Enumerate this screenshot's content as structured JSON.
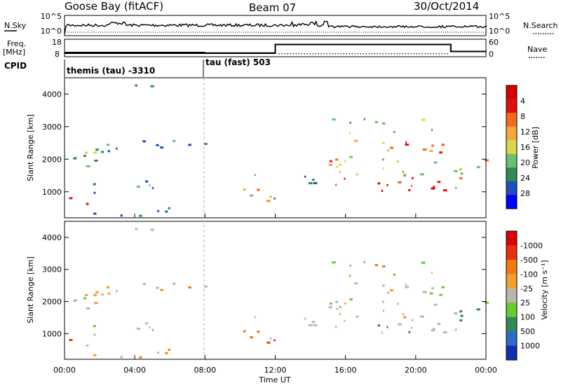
{
  "header": {
    "station": "Goose Bay (fitACF)",
    "beam": "Beam 07",
    "date": "30/Oct/2014"
  },
  "side_labels": {
    "nsky": "N.Sky",
    "nsearch": "N.Search",
    "freq_top": "Freq.",
    "freq_unit": "[MHz]",
    "nave": "Nave",
    "cpid": "CPID"
  },
  "strip_ticks": {
    "noise_left_top": "10^5",
    "noise_left_bottom": "10^0",
    "noise_right_top": "10^5",
    "noise_right_bottom": "10^0",
    "freq_left_top": "18",
    "freq_left_bottom": "8",
    "nave_right_top": "60",
    "nave_right_bottom": "0"
  },
  "cpid": {
    "segment1": "themis (tau) -3310",
    "segment2": "tau (fast) 503"
  },
  "axes": {
    "xlabel": "Time UT",
    "ylabel": "Slant Range [km]",
    "x_ticks": [
      "00:00",
      "04:00",
      "08:00",
      "12:00",
      "16:00",
      "20:00",
      "00:00"
    ],
    "y_ticks": [
      "1000",
      "2000",
      "3000",
      "4000"
    ]
  },
  "colorbars": {
    "power": {
      "label": "Power [dB]",
      "ticks": [
        "4",
        "8",
        "12",
        "16",
        "20",
        "24",
        "28"
      ],
      "colors": [
        "#0000ff",
        "#1f4fbf",
        "#2e8b57",
        "#6cc06c",
        "#d8d84a",
        "#f2a83a",
        "#f26a1a",
        "#e01010",
        "#d80000"
      ]
    },
    "velocity": {
      "label": "Velocity [m s⁻¹]",
      "ticks": [
        "1000",
        "500",
        "100",
        "25",
        "-25",
        "-100",
        "-500",
        "-1000"
      ],
      "colors": [
        "#1030b0",
        "#2e6bc8",
        "#2e8b57",
        "#66cc33",
        "#b8b8b0",
        "#f0a030",
        "#f07a10",
        "#e83010",
        "#e00000"
      ]
    }
  },
  "chart_data": [
    {
      "type": "line",
      "title": "N.Sky / N.Search noise",
      "x_range_hours": [
        0,
        24
      ],
      "y_scale": "log",
      "ylim": [
        1,
        100000
      ]
    },
    {
      "type": "line",
      "title": "Freq. / Nave",
      "x": [
        0,
        12,
        12,
        22,
        22,
        24
      ],
      "freq_mhz": [
        10,
        10,
        15,
        15,
        11,
        11
      ],
      "nave": [
        0,
        0,
        50,
        50,
        0,
        0
      ],
      "ylim": [
        8,
        18
      ]
    },
    {
      "type": "heatmap",
      "title": "Power [dB]",
      "xlabel": "Time UT",
      "ylabel": "Slant Range [km]",
      "xlim_hours": [
        0,
        24
      ],
      "ylim_km": [
        200,
        4500
      ],
      "colorbar_range": [
        0,
        30
      ]
    },
    {
      "type": "heatmap",
      "title": "Velocity [m s-1]",
      "xlabel": "Time UT",
      "ylabel": "Slant Range [km]",
      "xlim_hours": [
        0,
        24
      ],
      "ylim_km": [
        200,
        4500
      ],
      "colorbar_range": [
        -1000,
        1000
      ]
    }
  ]
}
